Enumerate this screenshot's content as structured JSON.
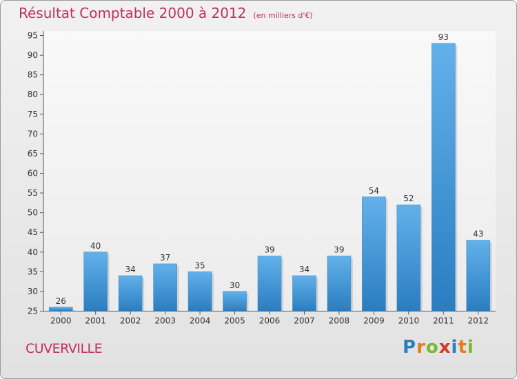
{
  "chart_data": {
    "type": "bar",
    "title": "Résultat Comptable 2000 à 2012",
    "subtitle": "(en milliers d'€)",
    "categories": [
      "2000",
      "2001",
      "2002",
      "2003",
      "2004",
      "2005",
      "2006",
      "2007",
      "2008",
      "2009",
      "2010",
      "2011",
      "2012"
    ],
    "values": [
      26,
      40,
      34,
      37,
      35,
      30,
      39,
      34,
      39,
      54,
      52,
      93,
      43
    ],
    "ylim": [
      25,
      95
    ],
    "yticks": [
      25,
      30,
      35,
      40,
      45,
      50,
      55,
      60,
      65,
      70,
      75,
      80,
      85,
      90,
      95
    ],
    "grid": false,
    "bar_color": "#4a9fdd"
  },
  "footer": {
    "place": "CUVERVILLE",
    "logo_letters": [
      {
        "char": "P",
        "color": "#2a7fc0"
      },
      {
        "char": "r",
        "color": "#e87a1c"
      },
      {
        "char": "o",
        "color": "#7ab82d"
      },
      {
        "char": "x",
        "color": "#d23a2a"
      },
      {
        "char": "i",
        "color": "#2a7fc0"
      },
      {
        "char": "t",
        "color": "#e87a1c"
      },
      {
        "char": "i",
        "color": "#7ab82d"
      }
    ]
  }
}
